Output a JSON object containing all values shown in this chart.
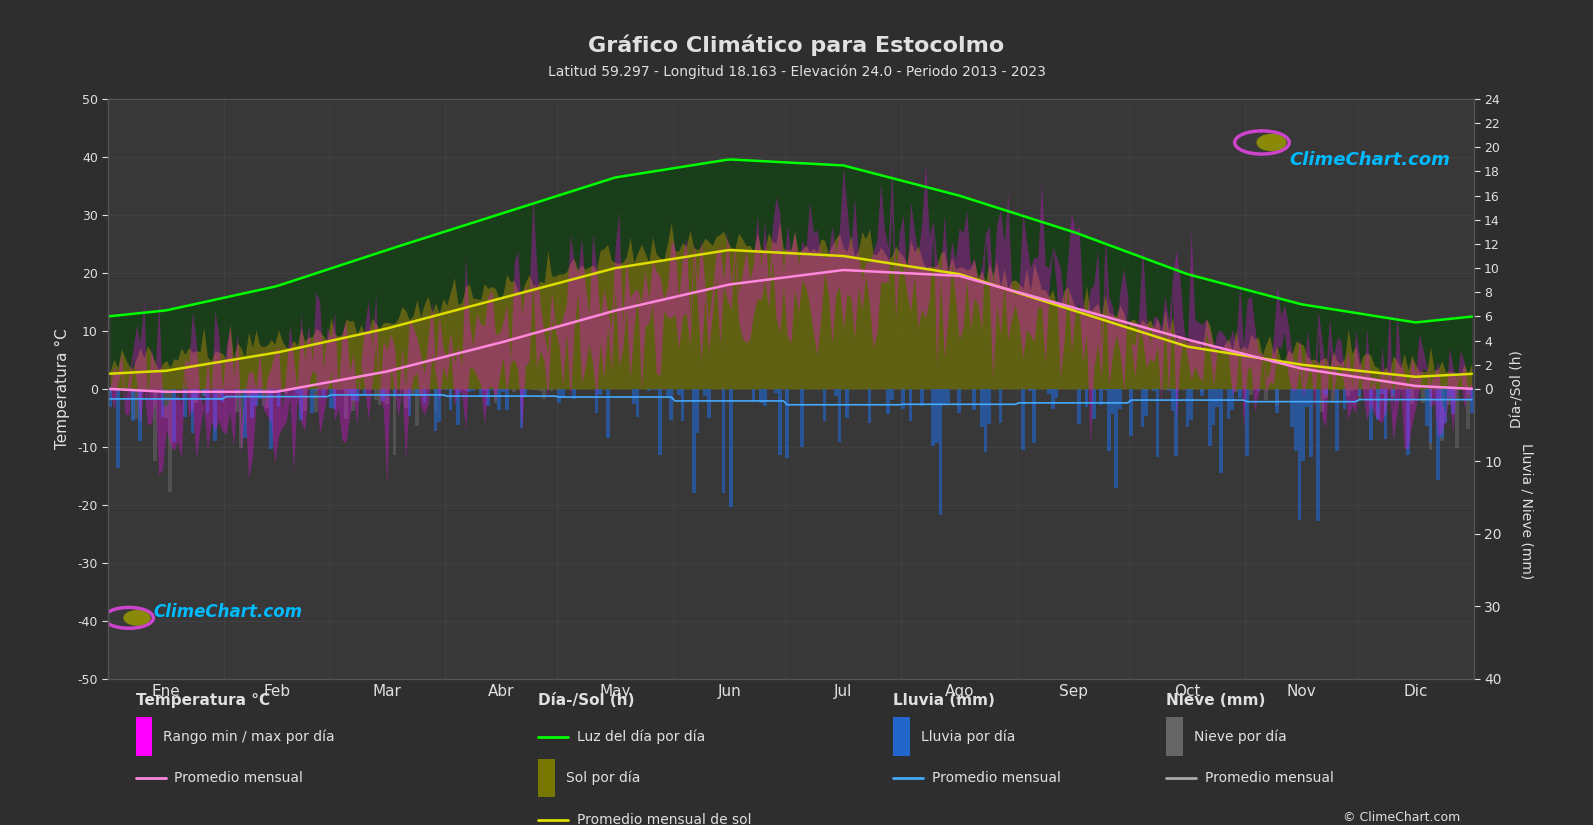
{
  "title": "Gráfico Climático para Estocolmo",
  "subtitle": "Latitud 59.297 - Longitud 18.163 - Elevación 24.0 - Periodo 2013 - 2023",
  "bg_color": "#2e2e2e",
  "plot_bg_color": "#383838",
  "grid_color": "#4a4a4a",
  "text_color": "#e0e0e0",
  "months": [
    "Ene",
    "Feb",
    "Mar",
    "Abr",
    "May",
    "Jun",
    "Jul",
    "Ago",
    "Sep",
    "Oct",
    "Nov",
    "Dic"
  ],
  "days_in_month": [
    31,
    28,
    31,
    30,
    31,
    30,
    31,
    31,
    30,
    31,
    30,
    31
  ],
  "temp_min_monthly": [
    -3.5,
    -4.0,
    -1.0,
    3.0,
    8.5,
    13.0,
    15.5,
    15.0,
    10.5,
    5.5,
    1.5,
    -2.0
  ],
  "temp_max_monthly": [
    2.0,
    3.0,
    7.0,
    13.0,
    19.0,
    23.5,
    26.0,
    25.0,
    19.0,
    12.0,
    6.0,
    3.0
  ],
  "temp_mean_monthly": [
    -0.5,
    -0.5,
    3.0,
    8.0,
    13.5,
    18.0,
    20.5,
    19.5,
    14.0,
    8.5,
    3.5,
    0.5
  ],
  "daylight_monthly": [
    6.5,
    8.5,
    11.5,
    14.5,
    17.5,
    19.0,
    18.5,
    16.0,
    13.0,
    9.5,
    7.0,
    5.5
  ],
  "sunshine_monthly": [
    1.5,
    3.0,
    5.0,
    7.5,
    10.0,
    11.5,
    11.0,
    9.5,
    6.5,
    3.5,
    2.0,
    1.0
  ],
  "rain_monthly_mm": [
    43,
    30,
    26,
    30,
    35,
    50,
    68,
    66,
    58,
    48,
    53,
    46
  ],
  "snow_monthly_mm": [
    30,
    25,
    15,
    3,
    0,
    0,
    0,
    0,
    0,
    2,
    12,
    28
  ],
  "temp_ylim": [
    -50,
    50
  ],
  "daylight_ylim": [
    0,
    24
  ],
  "rain_ylim_reversed": [
    40,
    0
  ],
  "temp_fill_color": "#ff00ff",
  "temp_mean_color": "#ff88dd",
  "daylight_line_color": "#00ff00",
  "daylight_fill_color": "#004400",
  "sunshine_fill_color": "#777700",
  "sunshine_line_color": "#dddd00",
  "rain_bar_color": "#2266cc",
  "rain_line_color": "#44aaff",
  "snow_bar_color": "#666666",
  "snow_line_color": "#aaaaaa",
  "watermark_color": "#00bbff",
  "ylabel_left": "Temperatura °C",
  "ylabel_right_daylight": "Día-/Sol (h)",
  "ylabel_right_rain": "Lluvia / Nieve (mm)"
}
